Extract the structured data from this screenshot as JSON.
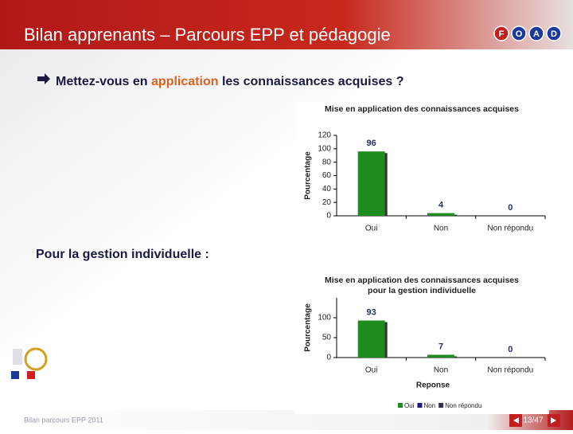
{
  "slide": {
    "title": "Bilan apprenants – Parcours EPP et pédagogie",
    "logo": [
      "F",
      "O",
      "A",
      "D"
    ],
    "question": {
      "prefix": "Mettez-vous en",
      "highlight": "application",
      "suffix": "les connaissances acquises ?"
    },
    "section": "Pour la gestion individuelle :",
    "footer": "Bilan parcours EPP 2011",
    "page": "13/47"
  },
  "chart_data": [
    {
      "type": "bar",
      "title": "Mise en application des connaissances acquises",
      "y_label": "Pourcentage",
      "categories": [
        "Oui",
        "Non",
        "Non répondu"
      ],
      "values": [
        96,
        4,
        0
      ],
      "color": "#1e8c1e",
      "ylim": [
        0,
        120
      ],
      "yticks": [
        0,
        20,
        40,
        60,
        80,
        100,
        120
      ]
    },
    {
      "type": "bar",
      "title": [
        "Mise en application des connaissances acquises",
        "pour la gestion individuelle"
      ],
      "y_label": "Pourcentage",
      "x_label": "Reponse",
      "categories": [
        "Oui",
        "Non",
        "Non répondu"
      ],
      "values": [
        93,
        7,
        0
      ],
      "color": "#1e8c1e",
      "ylim": [
        0,
        150
      ],
      "yticks": [
        0,
        50,
        100
      ],
      "legend": [
        "Oui",
        "Non",
        "Non répondu"
      ],
      "legend_colors": [
        "#1e8c1e",
        "#1a1a80",
        "#303050"
      ]
    }
  ]
}
